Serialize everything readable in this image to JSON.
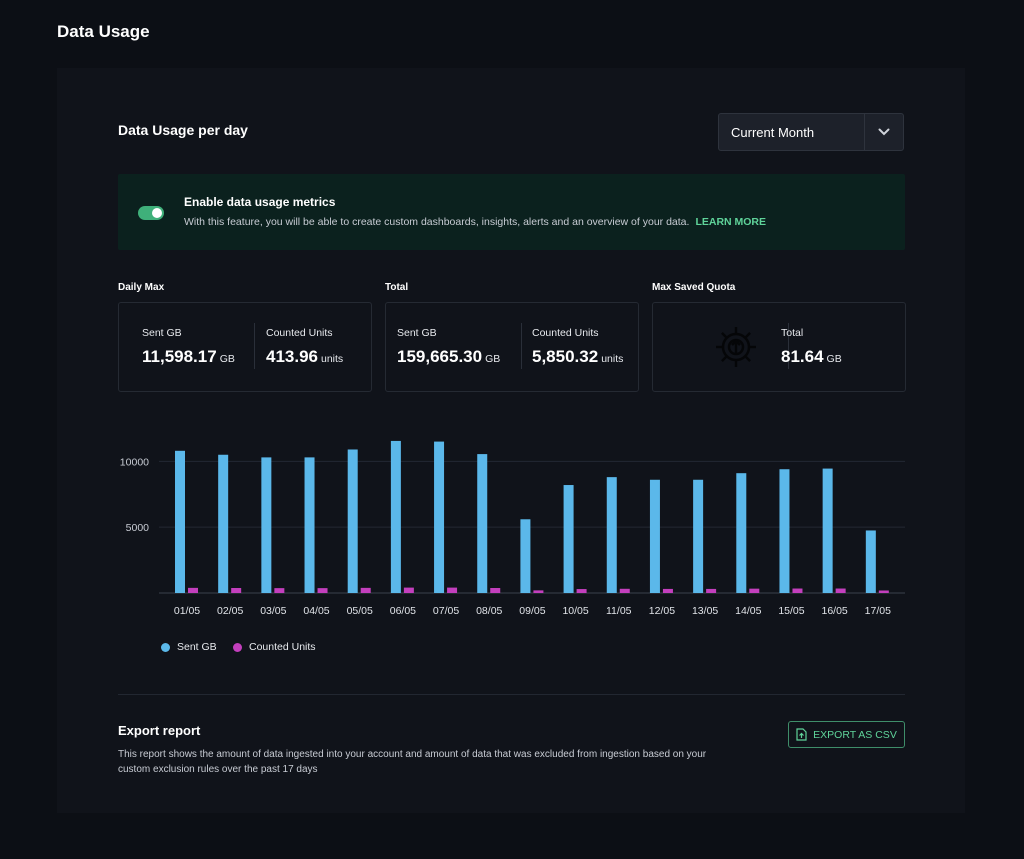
{
  "page": {
    "title": "Data Usage"
  },
  "usage": {
    "title": "Data Usage per day",
    "range_select": {
      "value": "Current Month",
      "icon": "chevron-down-icon"
    }
  },
  "banner": {
    "title": "Enable data usage metrics",
    "description": "With this feature, you will be able to create custom dashboards, insights, alerts and an overview of your data.",
    "link": "LEARN MORE",
    "toggle_on": true
  },
  "stats": {
    "daily_max": {
      "label": "Daily Max",
      "sent_caption": "Sent GB",
      "sent_value": "11,598.17",
      "sent_unit": "GB",
      "units_caption": "Counted Units",
      "units_value": "413.96",
      "units_unit": "units"
    },
    "total": {
      "label": "Total",
      "sent_caption": "Sent GB",
      "sent_value": "159,665.30",
      "sent_unit": "GB",
      "units_caption": "Counted Units",
      "units_value": "5,850.32",
      "units_unit": "units"
    },
    "quota": {
      "label": "Max Saved Quota",
      "icon": "gear-icon",
      "caption": "Total",
      "value": "81.64",
      "unit": "GB"
    }
  },
  "chart_data": {
    "type": "bar",
    "categories": [
      "01/05",
      "02/05",
      "03/05",
      "04/05",
      "05/05",
      "06/05",
      "07/05",
      "08/05",
      "09/05",
      "10/05",
      "11/05",
      "12/05",
      "13/05",
      "14/05",
      "15/05",
      "16/05",
      "17/05"
    ],
    "series": [
      {
        "name": "Sent GB",
        "color": "#5bb8ea",
        "values": [
          10800,
          10500,
          10300,
          10300,
          10900,
          11550,
          11500,
          10550,
          5600,
          8200,
          8800,
          8600,
          8600,
          9100,
          9400,
          9450,
          4750
        ]
      },
      {
        "name": "Counted Units",
        "color": "#c33fbd",
        "values": [
          390,
          380,
          370,
          370,
          390,
          410,
          410,
          380,
          200,
          300,
          320,
          310,
          310,
          330,
          340,
          340,
          175
        ]
      }
    ],
    "yticks": [
      5000,
      10000
    ],
    "ylim": [
      0,
      12000
    ],
    "grid": true,
    "legend": "bottom-left"
  },
  "export": {
    "title": "Export report",
    "description": "This report shows the amount of data ingested into your account and amount of data that was excluded from ingestion based on your custom exclusion rules over the past 17 days",
    "button_label": "EXPORT AS CSV",
    "button_icon": "file-export-icon"
  }
}
